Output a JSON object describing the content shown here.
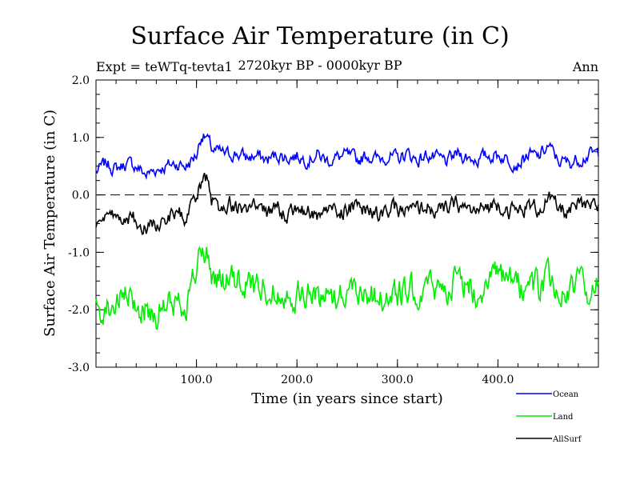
{
  "header": {
    "title": "Surface Air Temperature (in C)",
    "subtitle": "2720kyr BP - 0000kyr BP",
    "experiment": "Expt = teWTq-tevta1",
    "season": "Ann"
  },
  "chart_data": {
    "type": "line",
    "title": "Surface Air Temperature (in C)",
    "xlabel": "Time (in years since start)",
    "ylabel": "Surface Air Temperature (in C)",
    "xlim": [
      0,
      500
    ],
    "ylim": [
      -3.0,
      2.0
    ],
    "x_ticks": [
      100,
      200,
      300,
      400
    ],
    "x_tick_labels": [
      "100.0",
      "200.0",
      "300.0",
      "400.0"
    ],
    "y_ticks": [
      -3.0,
      -2.0,
      -1.0,
      0.0,
      1.0,
      2.0
    ],
    "y_tick_labels": [
      "-3.0",
      "-2.0",
      "-1.0",
      "0.0",
      "1.0",
      "2.0"
    ],
    "reference_line": {
      "y": 0.0,
      "style": "dashed"
    },
    "legend_position": "bottom-right",
    "series": [
      {
        "name": "Ocean",
        "color": "#0000ff",
        "x": [
          0,
          10,
          20,
          30,
          40,
          50,
          60,
          70,
          80,
          90,
          100,
          105,
          110,
          115,
          120,
          130,
          140,
          150,
          160,
          170,
          180,
          190,
          200,
          210,
          220,
          230,
          240,
          250,
          260,
          270,
          280,
          290,
          300,
          310,
          320,
          330,
          340,
          350,
          360,
          370,
          380,
          390,
          400,
          410,
          420,
          430,
          440,
          450,
          460,
          470,
          480,
          490,
          500
        ],
        "values": [
          0.4,
          0.55,
          0.45,
          0.55,
          0.5,
          0.35,
          0.45,
          0.5,
          0.55,
          0.5,
          0.7,
          1.05,
          1.0,
          0.8,
          0.75,
          0.7,
          0.72,
          0.65,
          0.68,
          0.6,
          0.7,
          0.65,
          0.68,
          0.62,
          0.7,
          0.6,
          0.65,
          0.68,
          0.6,
          0.7,
          0.62,
          0.68,
          0.62,
          0.72,
          0.6,
          0.7,
          0.62,
          0.58,
          0.72,
          0.65,
          0.62,
          0.68,
          0.7,
          0.62,
          0.55,
          0.7,
          0.65,
          0.85,
          0.6,
          0.55,
          0.62,
          0.7,
          0.72
        ]
      },
      {
        "name": "Land",
        "color": "#00ee00",
        "x": [
          0,
          10,
          20,
          30,
          40,
          50,
          60,
          70,
          80,
          90,
          100,
          105,
          110,
          115,
          120,
          130,
          140,
          150,
          160,
          170,
          180,
          190,
          200,
          210,
          220,
          230,
          240,
          250,
          260,
          270,
          280,
          290,
          300,
          310,
          320,
          330,
          340,
          350,
          360,
          370,
          380,
          390,
          400,
          410,
          420,
          430,
          440,
          450,
          460,
          470,
          480,
          490,
          500
        ],
        "values": [
          -2.0,
          -1.95,
          -1.9,
          -1.8,
          -1.95,
          -2.0,
          -2.05,
          -1.95,
          -1.9,
          -1.85,
          -1.3,
          -1.0,
          -1.05,
          -1.4,
          -1.45,
          -1.5,
          -1.55,
          -1.55,
          -1.6,
          -1.6,
          -1.7,
          -1.65,
          -1.75,
          -1.7,
          -1.8,
          -1.7,
          -1.75,
          -1.65,
          -1.6,
          -1.7,
          -1.75,
          -1.8,
          -1.75,
          -1.7,
          -1.65,
          -1.6,
          -1.65,
          -1.55,
          -1.5,
          -1.6,
          -1.65,
          -1.5,
          -1.45,
          -1.55,
          -1.6,
          -1.55,
          -1.6,
          -1.5,
          -1.65,
          -1.7,
          -1.55,
          -1.65,
          -1.6
        ]
      },
      {
        "name": "AllSurf",
        "color": "#000000",
        "x": [
          0,
          10,
          20,
          30,
          40,
          50,
          60,
          70,
          80,
          90,
          100,
          105,
          110,
          115,
          120,
          130,
          140,
          150,
          160,
          170,
          180,
          190,
          200,
          210,
          220,
          230,
          240,
          250,
          260,
          270,
          280,
          290,
          300,
          310,
          320,
          330,
          340,
          350,
          360,
          370,
          380,
          390,
          400,
          410,
          420,
          430,
          440,
          450,
          460,
          470,
          480,
          490,
          500
        ],
        "values": [
          -0.5,
          -0.45,
          -0.4,
          -0.35,
          -0.45,
          -0.55,
          -0.5,
          -0.4,
          -0.35,
          -0.4,
          -0.05,
          0.2,
          0.25,
          -0.15,
          -0.2,
          -0.15,
          -0.2,
          -0.25,
          -0.2,
          -0.3,
          -0.25,
          -0.3,
          -0.25,
          -0.3,
          -0.35,
          -0.25,
          -0.3,
          -0.25,
          -0.2,
          -0.3,
          -0.35,
          -0.3,
          -0.25,
          -0.3,
          -0.25,
          -0.2,
          -0.3,
          -0.25,
          -0.15,
          -0.25,
          -0.3,
          -0.2,
          -0.15,
          -0.25,
          -0.3,
          -0.2,
          -0.25,
          -0.05,
          -0.25,
          -0.3,
          -0.2,
          -0.25,
          -0.2
        ]
      }
    ]
  }
}
